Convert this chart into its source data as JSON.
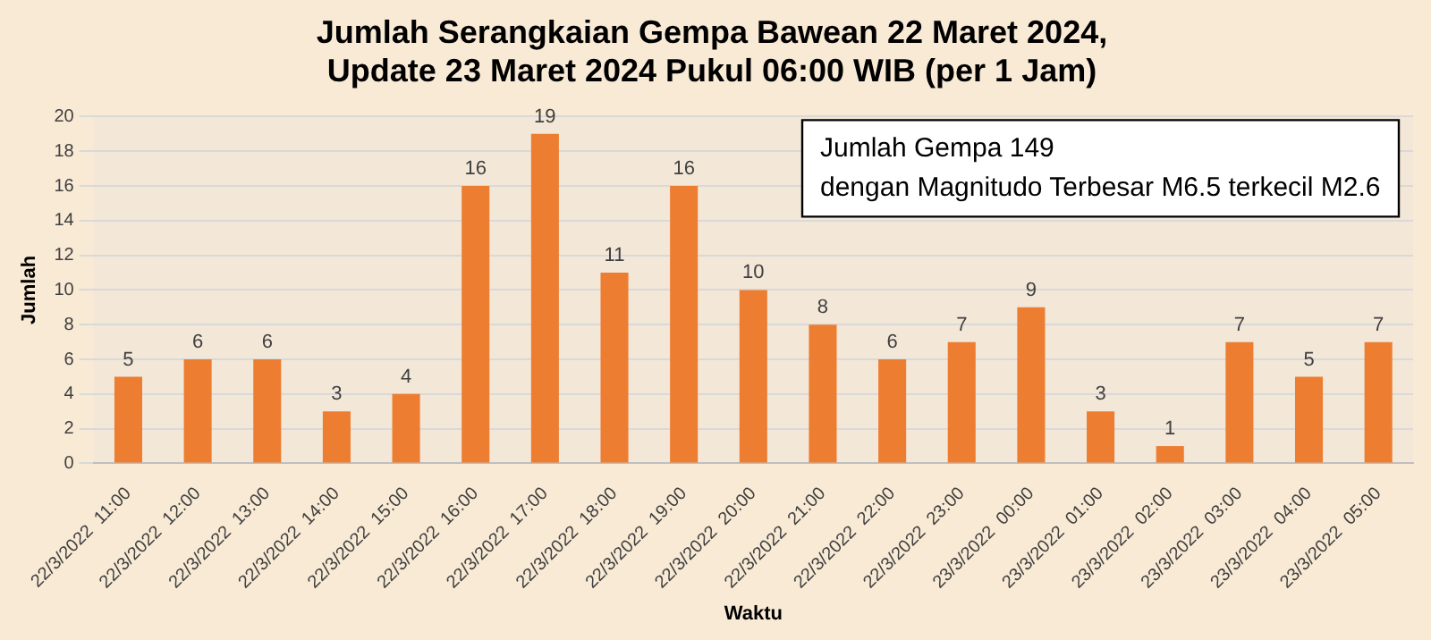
{
  "chart_data": {
    "type": "bar",
    "title": [
      "Jumlah Serangkaian Gempa Bawean 22 Maret 2024,",
      "Update 23 Maret 2024 Pukul 06:00 WIB (per 1 Jam)"
    ],
    "xlabel": "Waktu",
    "ylabel": "Jumlah",
    "categories": [
      "22/3/2022  11:00",
      "22/3/2022  12:00",
      "22/3/2022  13:00",
      "22/3/2022  14:00",
      "22/3/2022  15:00",
      "22/3/2022  16:00",
      "22/3/2022  17:00",
      "22/3/2022  18:00",
      "22/3/2022  19:00",
      "22/3/2022  20:00",
      "22/3/2022  21:00",
      "22/3/2022  22:00",
      "22/3/2022  23:00",
      "23/3/2022  00:00",
      "23/3/2022  01:00",
      "23/3/2022  02:00",
      "23/3/2022  03:00",
      "23/3/2022  04:00",
      "23/3/2022  05:00"
    ],
    "values": [
      5,
      6,
      6,
      3,
      4,
      16,
      19,
      11,
      16,
      10,
      8,
      6,
      7,
      9,
      3,
      1,
      7,
      5,
      7
    ],
    "color": "#ed7d31",
    "ylim": [
      0,
      20
    ],
    "yticks": [
      0,
      2,
      4,
      6,
      8,
      10,
      12,
      14,
      16,
      18,
      20
    ],
    "grid": "y",
    "legend": false,
    "data_labels": true,
    "annotations": [
      "Jumlah Gempa 149",
      "dengan Magnitudo Terbesar M6.5 terkecil M2.6"
    ]
  }
}
